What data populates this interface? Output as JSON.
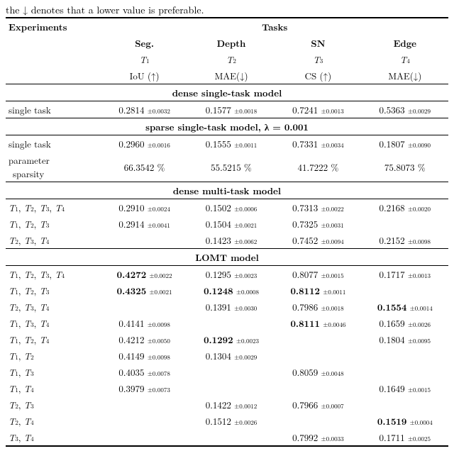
{
  "caption": "the ↓ denotes that a lower value is preferable.",
  "head": {
    "exp": "Experiments",
    "tasks": "Tasks",
    "cols": [
      {
        "name": "Seg.",
        "t": "T",
        "sub": "1",
        "metric": "IoU (↑)"
      },
      {
        "name": "Depth",
        "t": "T",
        "sub": "2",
        "metric": "MAE(↓)"
      },
      {
        "name": "SN",
        "t": "T",
        "sub": "3",
        "metric": "CS (↑)"
      },
      {
        "name": "Edge",
        "t": "T",
        "sub": "4",
        "metric": "MAE(↓)"
      }
    ]
  },
  "sections": {
    "dst": "dense single-task model",
    "sst": "sparse single-task model, λ = 0.001",
    "dmt": "dense multi-task model",
    "lomt": "LOMT model"
  },
  "rows_dst": [
    {
      "label": "single task",
      "v": [
        {
          "m": "0.2814",
          "s": "±0.0032"
        },
        {
          "m": "0.1577",
          "s": "±0.0018"
        },
        {
          "m": "0.7241",
          "s": "±0.0013"
        },
        {
          "m": "0.5363",
          "s": "±0.0029"
        }
      ]
    }
  ],
  "rows_sst": [
    {
      "label": "single task",
      "v": [
        {
          "m": "0.2960",
          "s": "±0.0016"
        },
        {
          "m": "0.1555",
          "s": "±0.0011"
        },
        {
          "m": "0.7331",
          "s": "±0.0034"
        },
        {
          "m": "0.1807",
          "s": "±0.0090"
        }
      ]
    },
    {
      "label_a": "parameter",
      "label_b": "sparsity",
      "v": [
        {
          "m": "66.3542 %"
        },
        {
          "m": "55.5215 %"
        },
        {
          "m": "41.7222 %"
        },
        {
          "m": "75.8073 %"
        }
      ]
    }
  ],
  "rows_dmt": [
    {
      "tasks": [
        1,
        2,
        3,
        4
      ],
      "v": [
        {
          "m": "0.2910",
          "s": "±0.0024"
        },
        {
          "m": "0.1502",
          "s": "±0.0006"
        },
        {
          "m": "0.7313",
          "s": "±0.0022"
        },
        {
          "m": "0.2168",
          "s": "±0.0020"
        }
      ]
    },
    {
      "tasks": [
        1,
        2,
        3
      ],
      "v": [
        {
          "m": "0.2914",
          "s": "±0.0041"
        },
        {
          "m": "0.1504",
          "s": "±0.0021"
        },
        {
          "m": "0.7325",
          "s": "±0.0031"
        },
        null
      ]
    },
    {
      "tasks": [
        2,
        3,
        4
      ],
      "v": [
        null,
        {
          "m": "0.1423",
          "s": "±0.0062"
        },
        {
          "m": "0.7452",
          "s": "±0.0094"
        },
        {
          "m": "0.2152",
          "s": "±0.0098"
        }
      ]
    }
  ],
  "rows_lomt": [
    {
      "tasks": [
        1,
        2,
        3,
        4
      ],
      "v": [
        {
          "m": "0.4272",
          "s": "±0.0022",
          "bold": true
        },
        {
          "m": "0.1295",
          "s": "±0.0023"
        },
        {
          "m": "0.8077",
          "s": "±0.0015"
        },
        {
          "m": "0.1717",
          "s": "±0.0013"
        }
      ]
    },
    {
      "tasks": [
        1,
        2,
        3
      ],
      "v": [
        {
          "m": "0.4325",
          "s": "±0.0021",
          "bold": true
        },
        {
          "m": "0.1248",
          "s": "±0.0008",
          "bold": true
        },
        {
          "m": "0.8112",
          "s": "±0.0011",
          "bold": true
        },
        null
      ]
    },
    {
      "tasks": [
        2,
        3,
        4
      ],
      "v": [
        null,
        {
          "m": "0.1391",
          "s": "±0.0030"
        },
        {
          "m": "0.7986",
          "s": "±0.0018"
        },
        {
          "m": "0.1554",
          "s": "±0.0014",
          "bold": true
        }
      ]
    },
    {
      "tasks": [
        1,
        3,
        4
      ],
      "v": [
        {
          "m": "0.4141",
          "s": "±0.0098"
        },
        null,
        {
          "m": "0.8111",
          "s": "±0.0046",
          "bold": true
        },
        {
          "m": "0.1659",
          "s": "±0.0026"
        }
      ]
    },
    {
      "tasks": [
        1,
        2,
        4
      ],
      "v": [
        {
          "m": "0.4212",
          "s": "±0.0050"
        },
        {
          "m": "0.1292",
          "s": "±0.0023",
          "bold": true
        },
        null,
        {
          "m": "0.1804",
          "s": "±0.0095"
        }
      ]
    },
    {
      "tasks": [
        1,
        2
      ],
      "v": [
        {
          "m": "0.4149",
          "s": "±0.0098"
        },
        {
          "m": "0.1304",
          "s": "±0.0029"
        },
        null,
        null
      ]
    },
    {
      "tasks": [
        1,
        3
      ],
      "v": [
        {
          "m": "0.4035",
          "s": "±0.0078"
        },
        null,
        {
          "m": "0.8059",
          "s": "±0.0048"
        },
        null
      ]
    },
    {
      "tasks": [
        1,
        4
      ],
      "v": [
        {
          "m": "0.3979",
          "s": "±0.0073"
        },
        null,
        null,
        {
          "m": "0.1649",
          "s": "±0.0015"
        }
      ]
    },
    {
      "tasks": [
        2,
        3
      ],
      "v": [
        null,
        {
          "m": "0.1422",
          "s": "±0.0012"
        },
        {
          "m": "0.7966",
          "s": "±0.0007"
        },
        null
      ]
    },
    {
      "tasks": [
        2,
        4
      ],
      "v": [
        null,
        {
          "m": "0.1512",
          "s": "±0.0026"
        },
        null,
        {
          "m": "0.1519",
          "s": "±0.0004",
          "bold": true
        }
      ]
    },
    {
      "tasks": [
        3,
        4
      ],
      "v": [
        null,
        null,
        {
          "m": "0.7992",
          "s": "±0.0033"
        },
        {
          "m": "0.1711",
          "s": "±0.0025"
        }
      ]
    }
  ]
}
